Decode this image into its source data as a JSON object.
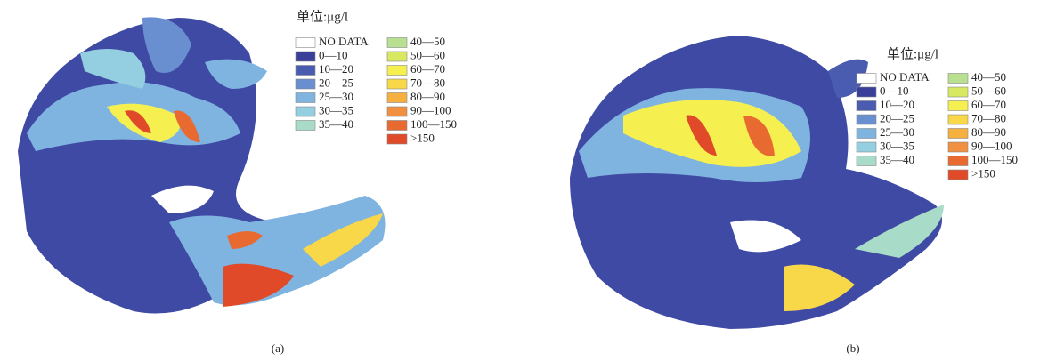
{
  "panels": [
    {
      "label": "(a)",
      "unit": "单位:μg/l",
      "legend": [
        {
          "label": "NO DATA",
          "color": "#ffffff"
        },
        {
          "label": "0—10",
          "color": "#3a3f9a"
        },
        {
          "label": "10—20",
          "color": "#4a5cb0"
        },
        {
          "label": "20—25",
          "color": "#6a8fd0"
        },
        {
          "label": "25—30",
          "color": "#7fb3e0"
        },
        {
          "label": "30—35",
          "color": "#93cfe0"
        },
        {
          "label": "35—40",
          "color": "#a8dcc8"
        },
        {
          "label": "40—50",
          "color": "#b8e090"
        },
        {
          "label": "50—60",
          "color": "#d8e860"
        },
        {
          "label": "60—70",
          "color": "#f5f050"
        },
        {
          "label": "70—80",
          "color": "#f8d848"
        },
        {
          "label": "80—90",
          "color": "#f5b040"
        },
        {
          "label": "90—100",
          "color": "#f09040"
        },
        {
          "label": "100—150",
          "color": "#e86a30"
        },
        {
          "label": ">150",
          "color": "#e04a28"
        }
      ]
    },
    {
      "label": "(b)",
      "unit": "单位:μg/l",
      "legend": [
        {
          "label": "NO DATA",
          "color": "#ffffff"
        },
        {
          "label": "0—10",
          "color": "#3a3f9a"
        },
        {
          "label": "10—20",
          "color": "#4a5cb0"
        },
        {
          "label": "20—25",
          "color": "#6a8fd0"
        },
        {
          "label": "25—30",
          "color": "#7fb3e0"
        },
        {
          "label": "30—35",
          "color": "#93cfe0"
        },
        {
          "label": "35—40",
          "color": "#a8dcc8"
        },
        {
          "label": "40—50",
          "color": "#b8e090"
        },
        {
          "label": "50—60",
          "color": "#d8e860"
        },
        {
          "label": "60—70",
          "color": "#f5f050"
        },
        {
          "label": "70—80",
          "color": "#f8d848"
        },
        {
          "label": "80—90",
          "color": "#f5b040"
        },
        {
          "label": "90—100",
          "color": "#f09040"
        },
        {
          "label": "100—150",
          "color": "#e86a30"
        },
        {
          "label": ">150",
          "color": "#e04a28"
        }
      ]
    }
  ]
}
